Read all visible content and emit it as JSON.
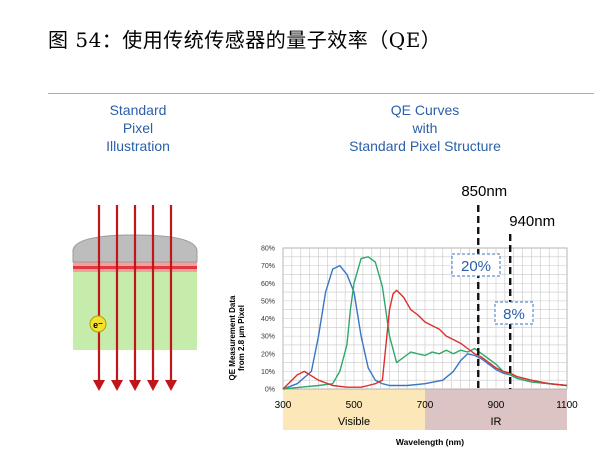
{
  "figure": {
    "title": "图 54：使用传统传感器的量子效率（QE）"
  },
  "left_panel": {
    "heading": [
      "Standard",
      "Pixel",
      "Illustration"
    ],
    "electron_label": "e⁻"
  },
  "right_panel": {
    "heading": [
      "QE Curves",
      "with",
      "Standard Pixel Structure"
    ]
  },
  "colors": {
    "blue": "#3a75c4",
    "green": "#2ea86a",
    "red": "#d9302b",
    "heading_blue": "#2b5fa8",
    "visible_band": "#fbe7b8",
    "ir_band": "#dcc4c4"
  },
  "chart_data": {
    "type": "line",
    "xlabel": "Wavelength (nm)",
    "ylabel": [
      "QE Measurement Data",
      "from 2.8 µm Pixel"
    ],
    "xlim": [
      300,
      1100
    ],
    "ylim": [
      0,
      80
    ],
    "x_ticks": [
      300,
      500,
      700,
      900,
      1100
    ],
    "y_ticks": [
      "0%",
      "10%",
      "20%",
      "30%",
      "40%",
      "50%",
      "60%",
      "70%",
      "80%"
    ],
    "grid": true,
    "bands": [
      {
        "label": "Visible",
        "from": 300,
        "to": 700
      },
      {
        "label": "IR",
        "from": 700,
        "to": 1100
      }
    ],
    "markers": [
      {
        "label": "850nm",
        "x": 850
      },
      {
        "label": "940nm",
        "x": 940
      }
    ],
    "annotations": [
      {
        "text": "20%",
        "x": 850
      },
      {
        "text": "8%",
        "x": 940
      }
    ],
    "series": [
      {
        "color": "blue",
        "x": [
          300,
          340,
          380,
          400,
          420,
          440,
          460,
          480,
          500,
          520,
          540,
          560,
          580,
          600,
          650,
          700,
          750,
          780,
          800,
          820,
          840,
          860,
          880,
          900,
          920,
          940,
          960,
          980,
          1000,
          1050,
          1100
        ],
        "y": [
          0,
          3,
          10,
          30,
          55,
          68,
          70,
          65,
          55,
          30,
          12,
          5,
          3,
          2,
          2,
          3,
          5,
          10,
          16,
          20,
          19,
          17,
          14,
          11,
          9,
          8,
          6,
          5,
          4,
          3,
          2
        ]
      },
      {
        "color": "green",
        "x": [
          300,
          350,
          400,
          440,
          460,
          480,
          490,
          500,
          520,
          540,
          560,
          580,
          600,
          620,
          640,
          660,
          680,
          700,
          720,
          740,
          760,
          780,
          800,
          820,
          840,
          860,
          880,
          900,
          920,
          940,
          960,
          980,
          1000,
          1050,
          1100
        ],
        "y": [
          0,
          1,
          2,
          3,
          10,
          25,
          45,
          60,
          74,
          75,
          72,
          58,
          30,
          15,
          18,
          21,
          20,
          19,
          21,
          20,
          22,
          20,
          22,
          21,
          23,
          20,
          17,
          14,
          10,
          8,
          6,
          5,
          4,
          3,
          2
        ]
      },
      {
        "color": "red",
        "x": [
          300,
          340,
          360,
          400,
          440,
          480,
          520,
          540,
          560,
          580,
          600,
          610,
          620,
          640,
          660,
          680,
          700,
          720,
          740,
          760,
          780,
          800,
          820,
          840,
          860,
          880,
          900,
          920,
          940,
          960,
          1000,
          1050,
          1100
        ],
        "y": [
          0,
          8,
          10,
          5,
          2,
          1,
          1,
          2,
          3,
          5,
          45,
          54,
          56,
          52,
          45,
          42,
          38,
          36,
          34,
          30,
          28,
          26,
          23,
          20,
          18,
          15,
          12,
          10,
          9,
          7,
          5,
          3,
          2
        ]
      }
    ]
  }
}
